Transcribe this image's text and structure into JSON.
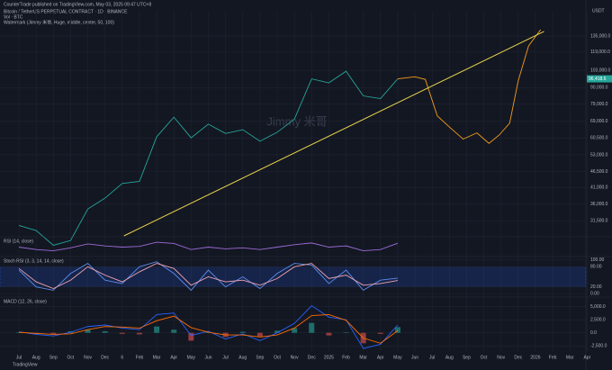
{
  "header": {
    "publisher": "CounterTrade published on TradingView.com, May 03, 2025 09:47 UTC+8",
    "brand": "TradingView"
  },
  "chart_data": [
    {
      "type": "line",
      "title": "Bitcoin / TetherUS PERPETUAL CONTRACT · 1D · BINANCE",
      "subtitle": "Vol · BTC",
      "note": "Watermark (Jimmy 米哥, Huge, middle, center, 50, 100)",
      "watermark": "Jimmy 米哥",
      "y_label": "USDT",
      "log_scale": true,
      "xlim": [
        -1.1,
        33.4
      ],
      "xticks": [
        {
          "value": 0,
          "label": "Jul"
        },
        {
          "value": 1,
          "label": "Aug"
        },
        {
          "value": 2,
          "label": "Sep"
        },
        {
          "value": 3,
          "label": "Oct"
        },
        {
          "value": 4,
          "label": "Nov"
        },
        {
          "value": 5,
          "label": "Dec"
        },
        6,
        {
          "value": 7,
          "label": "Feb"
        },
        {
          "value": 8,
          "label": "Mar"
        },
        {
          "value": 9,
          "label": "Apr"
        },
        {
          "value": 10,
          "label": "May"
        },
        {
          "value": 11,
          "label": "Jun"
        },
        {
          "value": 12,
          "label": "Jul"
        },
        {
          "value": 13,
          "label": "Aug"
        },
        {
          "value": 14,
          "label": "Sep"
        },
        {
          "value": 15,
          "label": "Oct"
        },
        {
          "value": 16,
          "label": "Nov"
        },
        {
          "value": 17,
          "label": "Dec"
        },
        {
          "value": 18,
          "label": "2025"
        },
        {
          "value": 19,
          "label": "Feb"
        },
        {
          "value": 20,
          "label": "Mar"
        },
        {
          "value": 21,
          "label": "Apr"
        },
        {
          "value": 22,
          "label": "May"
        },
        {
          "value": 23,
          "label": "Jun"
        },
        {
          "value": 24,
          "label": "Jul"
        },
        {
          "value": 25,
          "label": "Aug"
        },
        {
          "value": 26,
          "label": "Sep"
        },
        {
          "value": 27,
          "label": "Oct"
        },
        {
          "value": 28,
          "label": "Nov"
        },
        {
          "value": 29,
          "label": "Dec"
        },
        {
          "value": 30,
          "label": "2026"
        },
        {
          "value": 31,
          "label": "Feb"
        },
        {
          "value": 32,
          "label": "Mar"
        },
        {
          "value": 33,
          "label": "Apr"
        }
      ],
      "ylim": [
        28000,
        145000
      ],
      "yticks": [
        {
          "value": 135000,
          "label": "135,000.0"
        },
        {
          "value": 119000,
          "label": "119,000.0"
        },
        {
          "value": 103000,
          "label": "103,000.0"
        },
        {
          "value": 90000,
          "label": "90,000.0"
        },
        {
          "value": 79000,
          "label": "79,000.0"
        },
        {
          "value": 69000,
          "label": "69,000.0"
        },
        {
          "value": 60500,
          "label": "60,500.0"
        },
        {
          "value": 53000,
          "label": "53,000.0"
        },
        {
          "value": 46500,
          "label": "46,500.0"
        },
        {
          "value": 41000,
          "label": "41,000.0"
        },
        {
          "value": 36000,
          "label": "36,000.0"
        },
        {
          "value": 31500,
          "label": "31,500.0"
        }
      ],
      "last_price": {
        "value": 96418.5,
        "label": "96,418.5"
      },
      "last_color": "#26a69a",
      "series": [
        {
          "name": "BTCUSDT.P",
          "color": "#26a69a",
          "x": [
            0,
            1,
            2,
            3,
            4,
            5,
            6,
            7,
            8,
            9,
            10,
            11,
            12,
            13,
            14,
            15,
            16,
            17,
            18,
            19,
            20,
            21,
            22
          ],
          "values": [
            30400,
            29200,
            26000,
            27000,
            34600,
            37700,
            42300,
            43000,
            61100,
            71300,
            60600,
            67500,
            62700,
            64600,
            59000,
            63300,
            70200,
            96400,
            93400,
            102400,
            84300,
            82500,
            96400
          ]
        },
        {
          "name": "Projection",
          "color": "#f59c1a",
          "x": [
            22,
            23,
            23.6,
            24.3,
            25,
            25.8,
            26.6,
            27.3,
            27.9,
            28.5,
            29,
            29.6,
            30.3
          ],
          "values": [
            96400,
            98000,
            96000,
            72000,
            66000,
            60000,
            63000,
            58000,
            62000,
            68000,
            95000,
            125000,
            142000
          ]
        },
        {
          "name": "Trendline",
          "color": "#e8d44d",
          "x": [
            6.1,
            30.5
          ],
          "values": [
            28000,
            140000
          ]
        }
      ]
    },
    {
      "type": "line",
      "title": "RSI (14, close)",
      "ylim": [
        20,
        90
      ],
      "yticks": [],
      "series": [
        {
          "name": "RSI",
          "color": "#9c6bd6",
          "x": [
            0,
            1,
            2,
            3,
            4,
            5,
            6,
            7,
            8,
            9,
            10,
            11,
            12,
            13,
            14,
            15,
            16,
            17,
            18,
            19,
            20,
            21,
            22
          ],
          "values": [
            55,
            45,
            40,
            52,
            68,
            60,
            55,
            58,
            75,
            70,
            45,
            55,
            48,
            52,
            45,
            55,
            65,
            72,
            55,
            60,
            40,
            45,
            71
          ]
        }
      ]
    },
    {
      "type": "line",
      "title": "Stoch RSI (3, 3, 14, 14, close)",
      "ylim": [
        -5,
        105
      ],
      "yticks": [
        {
          "value": 100,
          "label": "100.00"
        },
        {
          "value": 80,
          "label": "80.00"
        },
        {
          "value": 20,
          "label": "20.00"
        },
        {
          "value": 0,
          "label": "0.00"
        }
      ],
      "band": [
        20,
        80
      ],
      "band_color": "#2962ff",
      "series": [
        {
          "name": "K",
          "color": "#5b8def",
          "x": [
            0,
            1,
            2,
            3,
            4,
            5,
            6,
            7,
            8,
            9,
            10,
            11,
            12,
            13,
            14,
            15,
            16,
            17,
            18,
            19,
            20,
            21,
            22
          ],
          "values": [
            70,
            20,
            10,
            60,
            90,
            40,
            30,
            80,
            95,
            60,
            10,
            70,
            20,
            50,
            15,
            60,
            90,
            85,
            30,
            70,
            10,
            40,
            46
          ]
        },
        {
          "name": "D",
          "color": "#f0a3b0",
          "x": [
            0,
            1,
            2,
            3,
            4,
            5,
            6,
            7,
            8,
            9,
            10,
            11,
            12,
            13,
            14,
            15,
            16,
            17,
            18,
            19,
            20,
            21,
            22
          ],
          "values": [
            75,
            35,
            15,
            40,
            80,
            55,
            35,
            65,
            90,
            75,
            25,
            50,
            35,
            40,
            25,
            45,
            80,
            90,
            45,
            55,
            25,
            30,
            39
          ]
        }
      ]
    },
    {
      "type": "line",
      "title": "MACD (12, 26, close)",
      "ylim": [
        -3500,
        6500
      ],
      "yticks": [
        {
          "value": 5000,
          "label": "5,000.0"
        },
        {
          "value": 2500,
          "label": "2,500.0"
        },
        {
          "value": 0,
          "label": "0.0"
        },
        {
          "value": -2500,
          "label": "-2,500.0"
        }
      ],
      "series": [
        {
          "name": "Histogram",
          "color": "#26a69a",
          "style": "bar",
          "x": [
            0,
            1,
            2,
            3,
            4,
            5,
            6,
            7,
            8,
            9,
            10,
            11,
            12,
            13,
            14,
            15,
            16,
            17,
            18,
            19,
            20,
            21,
            22
          ],
          "values": [
            100,
            -200,
            -300,
            300,
            600,
            300,
            -200,
            -300,
            1200,
            600,
            -1500,
            200,
            -800,
            200,
            -700,
            400,
            900,
            1900,
            -500,
            100,
            -2000,
            -200,
            1100
          ]
        },
        {
          "name": "MACD",
          "color": "#2962ff",
          "x": [
            0,
            1,
            2,
            3,
            4,
            5,
            6,
            7,
            8,
            9,
            10,
            11,
            12,
            13,
            14,
            15,
            16,
            17,
            18,
            19,
            20,
            21,
            22
          ],
          "values": [
            200,
            -300,
            -600,
            100,
            1200,
            1500,
            900,
            600,
            3500,
            3800,
            -500,
            300,
            -1200,
            -200,
            -1500,
            0,
            1800,
            5200,
            3000,
            2500,
            -3000,
            -2200,
            1500
          ]
        },
        {
          "name": "Signal",
          "color": "#ff6d00",
          "x": [
            0,
            1,
            2,
            3,
            4,
            5,
            6,
            7,
            8,
            9,
            10,
            11,
            12,
            13,
            14,
            15,
            16,
            17,
            18,
            19,
            20,
            21,
            22
          ],
          "values": [
            100,
            -100,
            -300,
            -200,
            600,
            1200,
            1100,
            900,
            2300,
            3200,
            1000,
            100,
            -400,
            -400,
            -800,
            -400,
            900,
            3300,
            3500,
            2400,
            -1000,
            -2000,
            400
          ]
        }
      ]
    }
  ]
}
